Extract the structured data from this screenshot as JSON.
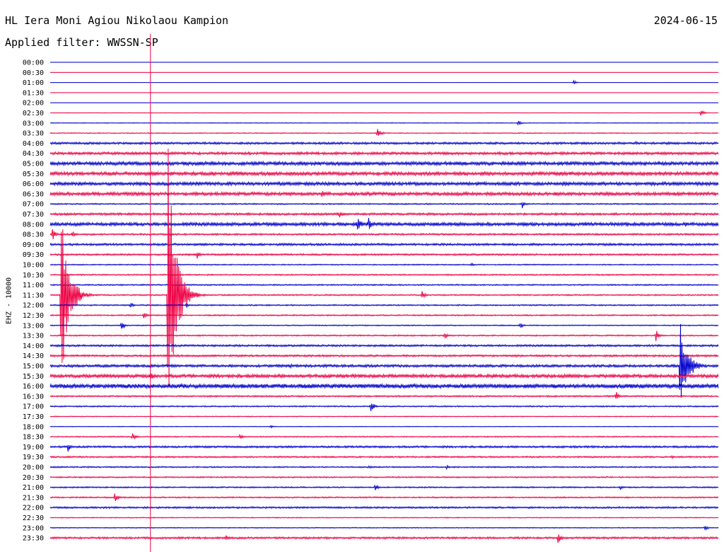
{
  "header": {
    "station": "HL Iera Moni Agiou Nikolaou Kampion",
    "date": "2024-06-15",
    "filter": "Applied filter: WWSSN-SP"
  },
  "chart_data": {
    "type": "line",
    "title": "HL Iera Moni Agiou Nikolaou Kampion",
    "subtitle": "Applied filter: WWSSN-SP",
    "ylabel": "EHZ - 10000",
    "xlabel": "",
    "row_labels": [
      "00:00",
      "00:30",
      "01:00",
      "01:30",
      "02:00",
      "02:30",
      "03:00",
      "03:30",
      "04:00",
      "04:30",
      "05:00",
      "05:30",
      "06:00",
      "06:30",
      "07:00",
      "07:30",
      "08:00",
      "08:30",
      "09:00",
      "09:30",
      "10:00",
      "10:30",
      "11:00",
      "11:30",
      "12:00",
      "12:30",
      "13:00",
      "13:30",
      "14:00",
      "14:30",
      "15:00",
      "15:30",
      "16:00",
      "16:30",
      "17:00",
      "17:30",
      "18:00",
      "18:30",
      "19:00",
      "19:30",
      "20:00",
      "20:30",
      "21:00",
      "21:30",
      "22:00",
      "22:30",
      "23:00",
      "23:30"
    ],
    "row_minutes": 30,
    "colors": [
      "#0000cc",
      "#ee0044"
    ],
    "marker_minute": 4.5,
    "noise_level": [
      0.1,
      0.1,
      0.1,
      0.1,
      0.1,
      0.2,
      0.3,
      0.4,
      1.0,
      1.2,
      1.6,
      1.6,
      1.5,
      1.5,
      0.6,
      1.0,
      1.5,
      0.8,
      1.0,
      0.8,
      0.5,
      0.6,
      0.6,
      0.6,
      0.6,
      0.6,
      0.5,
      0.6,
      0.9,
      0.9,
      1.2,
      1.5,
      2.0,
      0.7,
      0.6,
      0.4,
      0.3,
      0.5,
      0.9,
      0.7,
      0.6,
      0.6,
      0.6,
      0.6,
      0.8,
      0.4,
      0.4,
      0.9
    ],
    "events": [
      {
        "row": 2,
        "minute": 23.5,
        "amplitude": 3
      },
      {
        "row": 5,
        "minute": 29.2,
        "amplitude": 6
      },
      {
        "row": 6,
        "minute": 21.0,
        "amplitude": 4
      },
      {
        "row": 7,
        "minute": 14.7,
        "amplitude": 10
      },
      {
        "row": 8,
        "minute": 26.3,
        "amplitude": 3
      },
      {
        "row": 13,
        "minute": 12.2,
        "amplitude": 6
      },
      {
        "row": 14,
        "minute": 21.2,
        "amplitude": 6
      },
      {
        "row": 15,
        "minute": 13.0,
        "amplitude": 5
      },
      {
        "row": 16,
        "minute": 13.8,
        "amplitude": 14
      },
      {
        "row": 16,
        "minute": 14.3,
        "amplitude": 10
      },
      {
        "row": 16,
        "minute": 28.5,
        "amplitude": 4
      },
      {
        "row": 17,
        "minute": 0.1,
        "amplitude": 10
      },
      {
        "row": 17,
        "minute": 1.0,
        "amplitude": 5
      },
      {
        "row": 19,
        "minute": 6.6,
        "amplitude": 6
      },
      {
        "row": 20,
        "minute": 18.9,
        "amplitude": 3
      },
      {
        "row": 23,
        "minute": 0.5,
        "amplitude": 130
      },
      {
        "row": 23,
        "minute": 5.3,
        "amplitude": 220
      },
      {
        "row": 23,
        "minute": 16.7,
        "amplitude": 6
      },
      {
        "row": 24,
        "minute": 3.6,
        "amplitude": 4
      },
      {
        "row": 24,
        "minute": 6.1,
        "amplitude": 4
      },
      {
        "row": 25,
        "minute": 4.2,
        "amplitude": 6
      },
      {
        "row": 26,
        "minute": 3.2,
        "amplitude": 8
      },
      {
        "row": 26,
        "minute": 21.1,
        "amplitude": 5
      },
      {
        "row": 27,
        "minute": 17.7,
        "amplitude": 6
      },
      {
        "row": 27,
        "minute": 27.2,
        "amplitude": 9
      },
      {
        "row": 30,
        "minute": 10.8,
        "amplitude": 4
      },
      {
        "row": 30,
        "minute": 28.3,
        "amplitude": 60
      },
      {
        "row": 31,
        "minute": 4.5,
        "amplitude": 8
      },
      {
        "row": 33,
        "minute": 25.4,
        "amplitude": 8
      },
      {
        "row": 34,
        "minute": 14.4,
        "amplitude": 8
      },
      {
        "row": 36,
        "minute": 9.9,
        "amplitude": 2
      },
      {
        "row": 37,
        "minute": 3.7,
        "amplitude": 6
      },
      {
        "row": 37,
        "minute": 8.5,
        "amplitude": 5
      },
      {
        "row": 38,
        "minute": 0.8,
        "amplitude": 7
      },
      {
        "row": 39,
        "minute": 27.9,
        "amplitude": 3
      },
      {
        "row": 40,
        "minute": 14.3,
        "amplitude": 3
      },
      {
        "row": 40,
        "minute": 17.8,
        "amplitude": 3
      },
      {
        "row": 42,
        "minute": 14.6,
        "amplitude": 7
      },
      {
        "row": 42,
        "minute": 25.6,
        "amplitude": 3
      },
      {
        "row": 43,
        "minute": 2.9,
        "amplitude": 7
      },
      {
        "row": 46,
        "minute": 29.4,
        "amplitude": 4
      },
      {
        "row": 47,
        "minute": 7.9,
        "amplitude": 5
      },
      {
        "row": 47,
        "minute": 22.8,
        "amplitude": 9
      }
    ]
  }
}
